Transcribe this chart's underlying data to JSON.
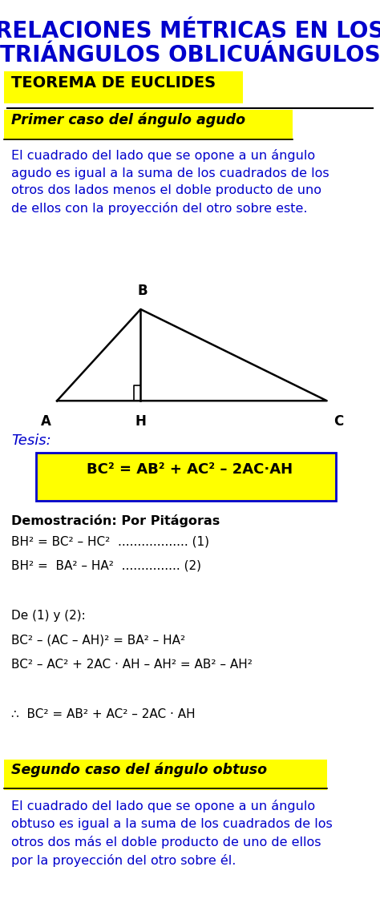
{
  "title_line1": "RELACIONES MÉTRICAS EN LOS",
  "title_line2": "TRIÁNGULOS OBLICUÁNGULOS",
  "title_color": "#0000CC",
  "subtitle": "TEOREMA DE EUCLIDES",
  "subtitle_bg": "#FFFF00",
  "subtitle_color": "#000000",
  "section1_title": "Primer caso del ángulo agudo",
  "section1_title_color": "#000000",
  "section1_title_bg": "#FFFF00",
  "section1_text": "El cuadrado del lado que se opone a un ángulo\nagudo es igual a la suma de los cuadrados de los\notros dos lados menos el doble producto de uno\nde ellos con la proyección del otro sobre este.",
  "section1_text_color": "#0000CC",
  "tesis_label": "Tesis:",
  "tesis_label_color": "#0000CC",
  "formula1": "BC² = AB² + AC² – 2AC·AH",
  "formula1_color": "#000000",
  "formula1_bg": "#FFFF00",
  "formula1_border": "#0000CC",
  "demo_title": "Demostración: Por Pitágoras",
  "demo_title_color": "#000000",
  "demo_lines": [
    "BH² = BC² – HC²  .................. (1)",
    "BH² =  BA² – HA²  ............... (2)",
    "",
    "De (1) y (2):",
    "BC² – (AC – AH)² = BA² – HA²",
    "BC² – AC² + 2AC · AH – AH² = AB² – AH²",
    "",
    "∴  BC² = AB² + AC² – 2AC · AH"
  ],
  "demo_color": "#000000",
  "section2_title": "Segundo caso del ángulo obtuso",
  "section2_title_color": "#000000",
  "section2_title_bg": "#FFFF00",
  "section2_text": "El cuadrado del lado que se opone a un ángulo\nobtuso es igual a la suma de los cuadrados de los\notros dos más el doble producto de uno de ellos\npor la proyección del otro sobre él.",
  "section2_text_color": "#0000CC",
  "bg_color": "#FFFFFF"
}
